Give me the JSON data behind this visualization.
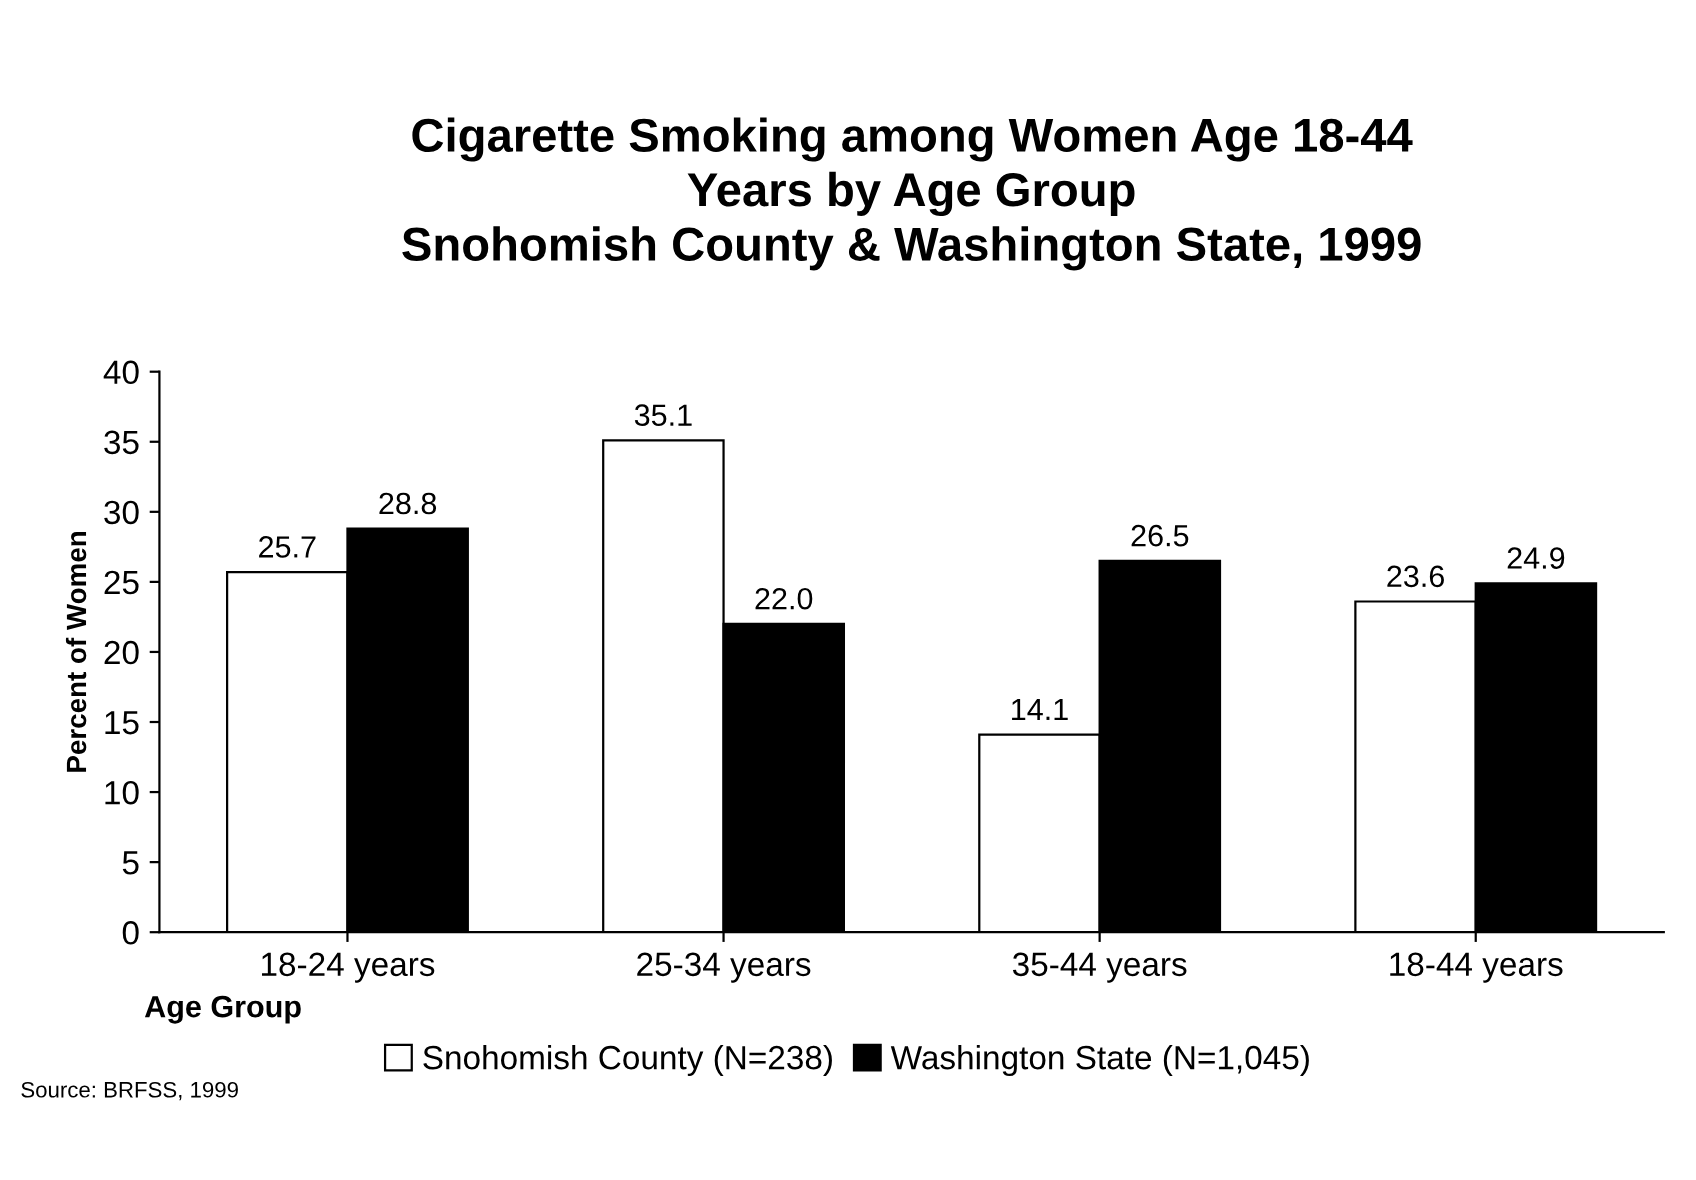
{
  "chart_data": {
    "type": "bar",
    "title": "Cigarette Smoking among Women Age 18-44\nYears by Age Group\nSnohomish County & Washington State, 1999",
    "categories": [
      "18-24 years",
      "25-34 years",
      "35-44 years",
      "18-44 years"
    ],
    "series": [
      {
        "name": "Snohomish County (N=238)",
        "color": "#ffffff",
        "values": [
          25.7,
          35.1,
          14.1,
          23.6
        ],
        "value_labels": [
          "25.7",
          "35.1",
          "14.1",
          "23.6"
        ]
      },
      {
        "name": "Washington State (N=1,045)",
        "color": "#000000",
        "values": [
          28.8,
          22.0,
          26.5,
          24.9
        ],
        "value_labels": [
          "28.8",
          "22.0",
          "26.5",
          "24.9"
        ]
      }
    ],
    "xlabel": "Age Group",
    "ylabel": "Percent of Women",
    "ylim": [
      0,
      40
    ],
    "yticks": [
      0,
      5,
      10,
      15,
      20,
      25,
      30,
      35,
      40
    ],
    "grid": false,
    "legend": "bottom",
    "annotations": [
      "Source: BRFSS, 1999"
    ]
  }
}
